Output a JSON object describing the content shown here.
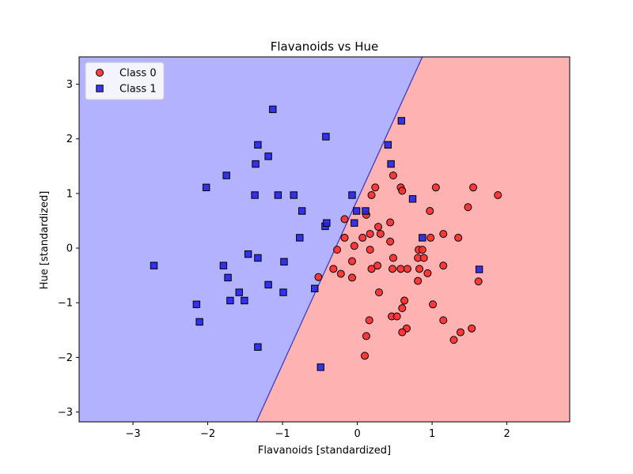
{
  "chart_data": {
    "type": "scatter",
    "title": "Flavanoids vs Hue",
    "xlabel": "Flavanoids [standardized]",
    "ylabel": "Hue [standardized]",
    "xlim": [
      -3.72,
      2.84
    ],
    "ylim": [
      -3.18,
      3.5
    ],
    "x_ticks": [
      -3,
      -2,
      -1,
      0,
      1,
      2
    ],
    "y_ticks": [
      -3,
      -2,
      -1,
      0,
      1,
      2,
      3
    ],
    "grid": false,
    "legend_location": "upper-left",
    "decision_boundary": {
      "points": [
        [
          -1.35,
          -3.18
        ],
        [
          0.87,
          3.5
        ]
      ],
      "left_region": "Class 1",
      "right_region": "Class 0",
      "colors": {
        "Class 0": "#ffb2b2",
        "Class 1": "#b2b2ff",
        "line": "#3333cc"
      }
    },
    "series": [
      {
        "name": "Class 0",
        "marker": "circle",
        "color": "#ff2a2a",
        "points": [
          [
            -0.52,
            -0.53
          ],
          [
            -0.32,
            -0.38
          ],
          [
            -0.22,
            -0.47
          ],
          [
            -0.07,
            -0.54
          ],
          [
            -0.17,
            0.19
          ],
          [
            -0.27,
            -0.03
          ],
          [
            -0.17,
            0.53
          ],
          [
            -0.07,
            -0.24
          ],
          [
            -0.04,
            0.04
          ],
          [
            0.07,
            0.19
          ],
          [
            0.12,
            0.61
          ],
          [
            0.17,
            0.26
          ],
          [
            0.17,
            -0.03
          ],
          [
            0.19,
            0.97
          ],
          [
            0.24,
            1.11
          ],
          [
            0.19,
            -0.38
          ],
          [
            0.28,
            0.39
          ],
          [
            0.31,
            0.26
          ],
          [
            0.27,
            -0.32
          ],
          [
            0.29,
            -0.81
          ],
          [
            0.12,
            -1.61
          ],
          [
            0.1,
            -1.97
          ],
          [
            0.16,
            -1.32
          ],
          [
            0.44,
            0.12
          ],
          [
            0.48,
            1.33
          ],
          [
            0.44,
            0.47
          ],
          [
            0.48,
            -0.18
          ],
          [
            0.47,
            -0.38
          ],
          [
            0.46,
            -1.25
          ],
          [
            0.53,
            -1.25
          ],
          [
            0.58,
            1.11
          ],
          [
            0.6,
            1.05
          ],
          [
            0.58,
            -0.38
          ],
          [
            0.63,
            -0.96
          ],
          [
            0.6,
            -1.1
          ],
          [
            0.66,
            -1.47
          ],
          [
            0.6,
            -1.54
          ],
          [
            0.67,
            -0.38
          ],
          [
            0.81,
            -0.18
          ],
          [
            0.82,
            -0.03
          ],
          [
            0.87,
            -0.03
          ],
          [
            0.81,
            -0.6
          ],
          [
            0.83,
            -0.38
          ],
          [
            0.89,
            -0.18
          ],
          [
            0.94,
            -0.46
          ],
          [
            0.97,
            0.68
          ],
          [
            0.98,
            0.19
          ],
          [
            1.01,
            -1.03
          ],
          [
            1.05,
            1.11
          ],
          [
            1.15,
            0.26
          ],
          [
            1.15,
            -0.32
          ],
          [
            1.15,
            -1.32
          ],
          [
            1.29,
            -1.68
          ],
          [
            1.35,
            0.19
          ],
          [
            1.38,
            -1.54
          ],
          [
            1.48,
            0.75
          ],
          [
            1.55,
            1.11
          ],
          [
            1.53,
            -1.47
          ],
          [
            1.62,
            -0.61
          ],
          [
            1.88,
            0.97
          ]
        ]
      },
      {
        "name": "Class 1",
        "marker": "square",
        "color": "#2323ea",
        "points": [
          [
            -2.72,
            -0.32
          ],
          [
            -2.15,
            -1.03
          ],
          [
            -2.11,
            -1.35
          ],
          [
            -2.02,
            1.11
          ],
          [
            -1.79,
            -0.32
          ],
          [
            -1.75,
            1.33
          ],
          [
            -1.73,
            -0.54
          ],
          [
            -1.7,
            -0.96
          ],
          [
            -1.58,
            -0.81
          ],
          [
            -1.51,
            -0.96
          ],
          [
            -1.46,
            -0.11
          ],
          [
            -1.37,
            0.97
          ],
          [
            -1.36,
            1.54
          ],
          [
            -1.33,
            -0.18
          ],
          [
            -1.33,
            1.89
          ],
          [
            -1.33,
            -1.81
          ],
          [
            -1.19,
            1.68
          ],
          [
            -1.19,
            -0.67
          ],
          [
            -1.13,
            2.54
          ],
          [
            -1.06,
            0.97
          ],
          [
            -0.98,
            -0.25
          ],
          [
            -0.99,
            -0.81
          ],
          [
            -0.85,
            0.97
          ],
          [
            -0.77,
            0.19
          ],
          [
            -0.74,
            0.68
          ],
          [
            -0.57,
            -0.74
          ],
          [
            -0.49,
            -2.18
          ],
          [
            -0.42,
            2.04
          ],
          [
            -0.43,
            0.4
          ],
          [
            -0.41,
            0.46
          ],
          [
            -0.07,
            0.97
          ],
          [
            -0.04,
            0.46
          ],
          [
            -0.01,
            0.68
          ],
          [
            0.11,
            0.68
          ],
          [
            0.41,
            1.89
          ],
          [
            0.45,
            1.54
          ],
          [
            0.59,
            2.33
          ],
          [
            0.74,
            0.9
          ],
          [
            0.87,
            0.19
          ],
          [
            1.63,
            -0.39
          ]
        ]
      }
    ]
  }
}
